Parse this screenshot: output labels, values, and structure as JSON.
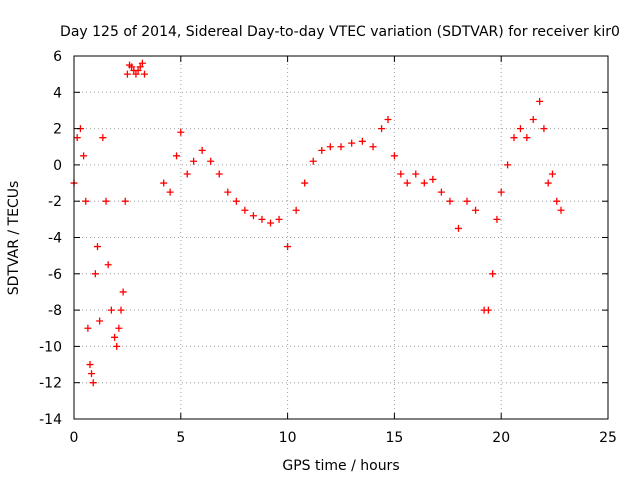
{
  "chart_data": {
    "type": "scatter",
    "title": "Day 125 of 2014, Sidereal Day-to-day VTEC variation (SDTVAR) for receiver kir0",
    "xlabel": "GPS time / hours",
    "ylabel": "SDTVAR / TECUs",
    "xlim": [
      0,
      25
    ],
    "ylim": [
      -14,
      6
    ],
    "xticks": [
      "0",
      "5",
      "10",
      "15",
      "20",
      "25"
    ],
    "yticks": [
      "-14",
      "-12",
      "-10",
      "-8",
      "-6",
      "-4",
      "-2",
      "0",
      "2",
      "4",
      "6"
    ],
    "grid": true,
    "marker": "+",
    "color": "#ff0000",
    "series": [
      {
        "name": "SDTVAR",
        "x": [
          0.0,
          0.15,
          0.3,
          0.45,
          0.55,
          0.65,
          0.75,
          0.82,
          0.9,
          1.0,
          1.1,
          1.2,
          1.35,
          1.5,
          1.6,
          1.75,
          1.9,
          2.0,
          2.1,
          2.2,
          2.3,
          2.4,
          2.5,
          2.6,
          2.7,
          2.8,
          2.9,
          3.0,
          3.1,
          3.2,
          3.3,
          4.2,
          4.5,
          4.8,
          5.0,
          5.3,
          5.6,
          6.0,
          6.4,
          6.8,
          7.2,
          7.6,
          8.0,
          8.4,
          8.8,
          9.2,
          9.6,
          10.0,
          10.4,
          10.8,
          11.2,
          11.6,
          12.0,
          12.5,
          13.0,
          13.5,
          14.0,
          14.4,
          14.7,
          15.0,
          15.3,
          15.6,
          16.0,
          16.4,
          16.8,
          17.2,
          17.6,
          18.0,
          18.4,
          18.8,
          19.2,
          19.4,
          19.6,
          19.8,
          20.0,
          20.3,
          20.6,
          20.9,
          21.2,
          21.5,
          21.8,
          22.0,
          22.2,
          22.4,
          22.6,
          22.8
        ],
        "y": [
          -1.0,
          1.5,
          2.0,
          0.5,
          -2.0,
          -9.0,
          -11.0,
          -11.5,
          -12.0,
          -6.0,
          -4.5,
          -8.6,
          1.5,
          -2.0,
          -5.5,
          -8.0,
          -9.5,
          -10.0,
          -9.0,
          -8.0,
          -7.0,
          -2.0,
          5.0,
          5.5,
          5.4,
          5.2,
          5.0,
          5.2,
          5.4,
          5.6,
          5.0,
          -1.0,
          -1.5,
          0.5,
          1.8,
          -0.5,
          0.2,
          0.8,
          0.2,
          -0.5,
          -1.5,
          -2.0,
          -2.5,
          -2.8,
          -3.0,
          -3.2,
          -3.0,
          -4.5,
          -2.5,
          -1.0,
          0.2,
          0.8,
          1.0,
          1.0,
          1.2,
          1.3,
          1.0,
          2.0,
          2.5,
          0.5,
          -0.5,
          -1.0,
          -0.5,
          -1.0,
          -0.8,
          -1.5,
          -2.0,
          -3.5,
          -2.0,
          -2.5,
          -8.0,
          -8.0,
          -6.0,
          -3.0,
          -1.5,
          0.0,
          1.5,
          2.0,
          1.5,
          2.5,
          3.5,
          2.0,
          -1.0,
          -0.5,
          -2.0,
          -2.5
        ]
      }
    ]
  }
}
